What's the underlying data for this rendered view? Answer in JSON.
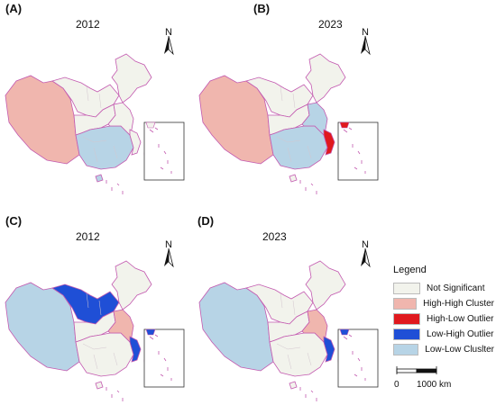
{
  "panels": [
    {
      "label": "(A)",
      "year": "2012",
      "regions": {
        "west": "high_high",
        "central": "not_significant",
        "south": "low_low",
        "northeast": "not_significant",
        "east": "not_significant",
        "east_coast": "not_significant",
        "central_north": "not_significant",
        "hainan": "low_low",
        "taiwan": "low_low"
      }
    },
    {
      "label": "(B)",
      "year": "2023",
      "regions": {
        "west": "high_high",
        "central": "not_significant",
        "south": "low_low",
        "northeast": "not_significant",
        "east": "low_low",
        "east_coast": "high_low",
        "central_north": "not_significant",
        "hainan": "not_significant",
        "taiwan": "high_low"
      }
    },
    {
      "label": "(C)",
      "year": "2012",
      "regions": {
        "west": "low_low",
        "central": "not_significant",
        "south": "not_significant",
        "northeast": "not_significant",
        "east": "high_high",
        "east_coast": "low_high",
        "central_north": "low_high",
        "hainan": "not_significant",
        "taiwan": "not_significant"
      }
    },
    {
      "label": "(D)",
      "year": "2023",
      "regions": {
        "west": "low_low",
        "central": "not_significant",
        "south": "not_significant",
        "northeast": "not_significant",
        "east": "high_high",
        "east_coast": "low_high",
        "central_north": "not_significant",
        "hainan": "not_significant",
        "taiwan": "not_significant"
      }
    }
  ],
  "compass_label": "N",
  "legend": {
    "title": "Legend",
    "items": [
      {
        "key": "not_significant",
        "label": "Not Significant",
        "color": "#f2f3ec"
      },
      {
        "key": "high_high",
        "label": "High-High Cluster",
        "color": "#f0b6ae"
      },
      {
        "key": "high_low",
        "label": "High-Low Outlier",
        "color": "#e0191e"
      },
      {
        "key": "low_high",
        "label": "Low-High Outlier",
        "color": "#1f4fd6"
      },
      {
        "key": "low_low",
        "label": "Low-Low Cluslter",
        "color": "#b7d4e6"
      }
    ]
  },
  "scale": {
    "start": "0",
    "end": "1000 km"
  },
  "border_color": "#c35ab0"
}
